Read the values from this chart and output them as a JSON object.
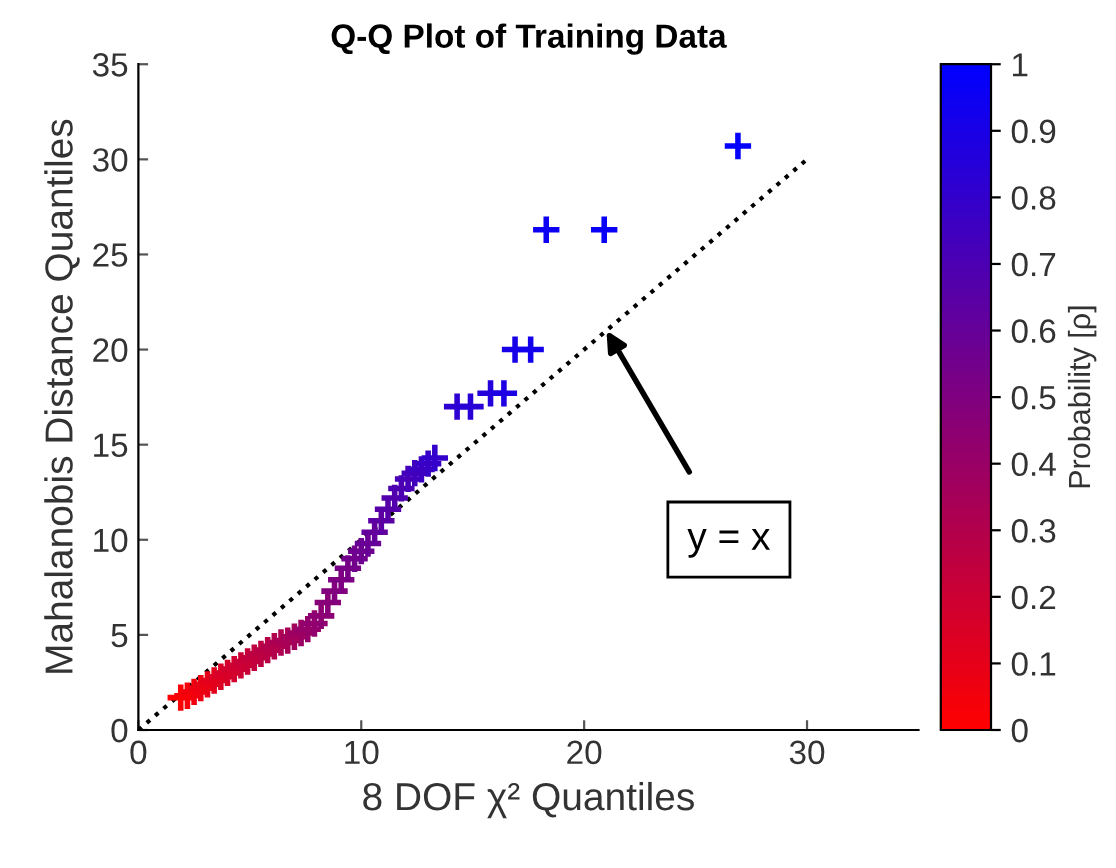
{
  "chart_data": {
    "type": "scatter",
    "title": "Q-Q Plot of Training Data",
    "xlabel": "8 DOF χ² Quantiles",
    "ylabel": "Mahalanobis Distance Quantiles",
    "clabel": "Probability [ρ]",
    "series": [
      {
        "marker": "cross",
        "colors": [
          "#fc0003",
          "#f70008",
          "#f2000d",
          "#ed0012",
          "#e80017",
          "#e3001c",
          "#db0024",
          "#d60029",
          "#d1002e",
          "#cc0033",
          "#c70038",
          "#c2003d",
          "#bd0042",
          "#b80047",
          "#b2004d",
          "#ad0052",
          "#a80057",
          "#a3005c",
          "#9c0063",
          "#960069",
          "#91006e",
          "#8c0073",
          "#870078",
          "#82007d",
          "#7d0082",
          "#780087",
          "#73008c",
          "#6e0091",
          "#690096",
          "#63009c",
          "#5c00a3",
          "#5700a8",
          "#5200ad",
          "#4d00b2",
          "#4700b8",
          "#4200bd",
          "#3d00c2",
          "#3800c7",
          "#3300cc",
          "#2e00d1",
          "#2900d6",
          "#2400db",
          "#1c00e3",
          "#1700e8",
          "#1200ed",
          "#0d00f2",
          "#0800f7",
          "#0300fc"
        ],
        "x": [
          1.9,
          2.2,
          2.5,
          2.8,
          3.1,
          3.4,
          3.7,
          4.0,
          4.3,
          4.6,
          4.9,
          5.2,
          5.5,
          5.8,
          6.1,
          6.4,
          6.7,
          7.0,
          7.3,
          7.6,
          7.9,
          8.2,
          8.5,
          8.8,
          9.1,
          9.4,
          9.7,
          10.0,
          10.3,
          10.6,
          10.9,
          11.2,
          11.5,
          11.8,
          12.1,
          12.4,
          12.7,
          13.0,
          13.3,
          14.3,
          14.9,
          15.8,
          16.4,
          16.9,
          17.6,
          18.3,
          20.9,
          26.9
        ],
        "values": [
          1.7,
          1.8,
          2.0,
          2.2,
          2.4,
          2.6,
          2.8,
          3.0,
          3.2,
          3.4,
          3.6,
          3.8,
          4.0,
          4.2,
          4.4,
          4.6,
          4.7,
          4.9,
          5.1,
          5.3,
          5.6,
          6.0,
          6.7,
          7.3,
          7.9,
          8.5,
          9.0,
          9.4,
          9.8,
          10.4,
          11.0,
          11.6,
          12.2,
          12.7,
          13.2,
          13.5,
          13.7,
          14.0,
          14.3,
          17.0,
          17.0,
          17.7,
          17.7,
          20.0,
          20.0,
          26.3,
          26.3,
          30.7
        ]
      },
      {
        "type": "line",
        "line_style": "dotted",
        "color": "#000000",
        "marker": "none",
        "x": [
          0,
          30
        ],
        "values": [
          0,
          30
        ]
      }
    ],
    "annotations": [
      "y = x"
    ],
    "xlim": [
      0,
      35
    ],
    "xticks": [
      0,
      10,
      20,
      30
    ],
    "ylim": [
      0,
      35
    ],
    "yticks": [
      0,
      5,
      10,
      15,
      20,
      25,
      30,
      35
    ],
    "clim": [
      0,
      1
    ],
    "cticks": [
      0,
      0.1,
      0.2,
      0.3,
      0.4,
      0.5,
      0.6,
      0.7,
      0.8,
      0.9,
      1
    ],
    "grid": false,
    "legend": false
  }
}
